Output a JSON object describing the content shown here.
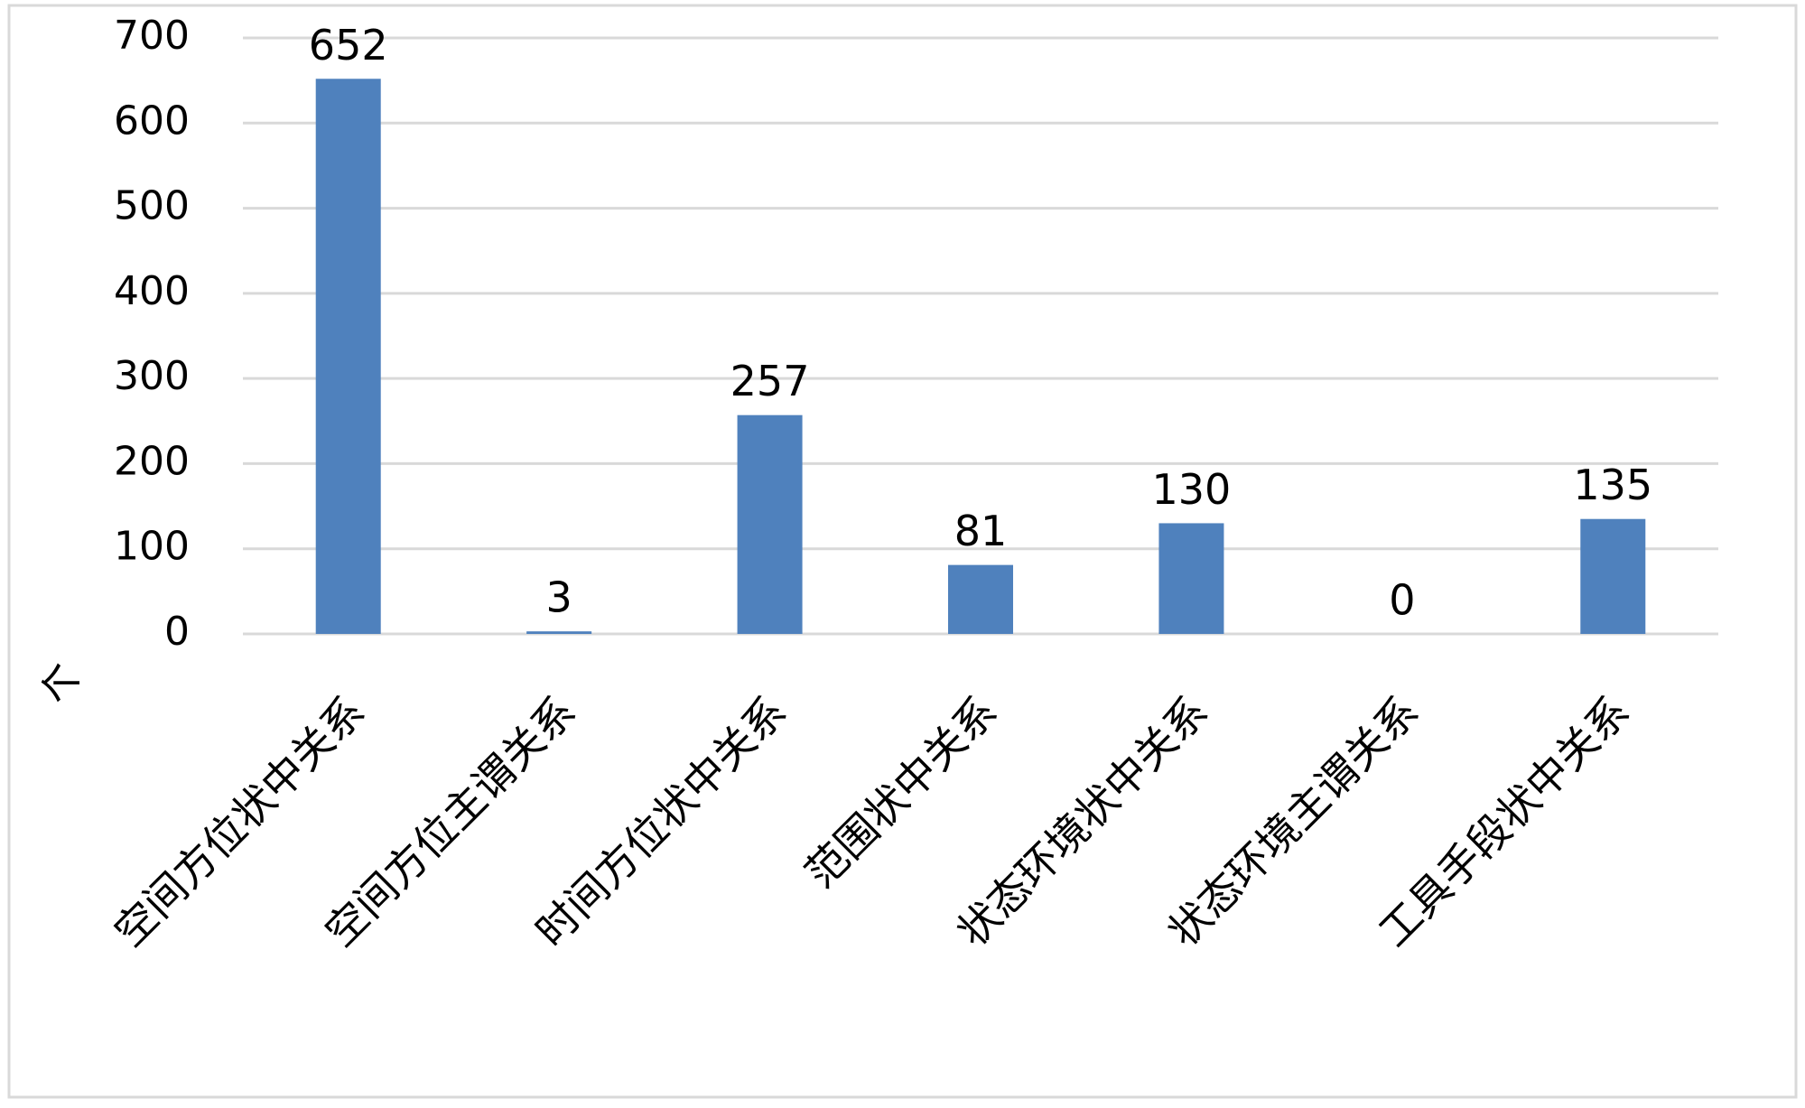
{
  "chart_data": {
    "type": "bar",
    "y_label": "个",
    "categories": [
      "空间方位状中关系",
      "空间方位主谓关系",
      "时间方位状中关系",
      "范围状中关系",
      "状态环境状中关系",
      "状态环境主谓关系",
      "工具手段状中关系"
    ],
    "values": [
      652,
      3,
      257,
      81,
      130,
      0,
      135
    ],
    "color": "#4f81bd",
    "ylim": [
      0,
      700
    ],
    "yticks": [
      0,
      100,
      200,
      300,
      400,
      500,
      600,
      700
    ],
    "grid": true
  }
}
